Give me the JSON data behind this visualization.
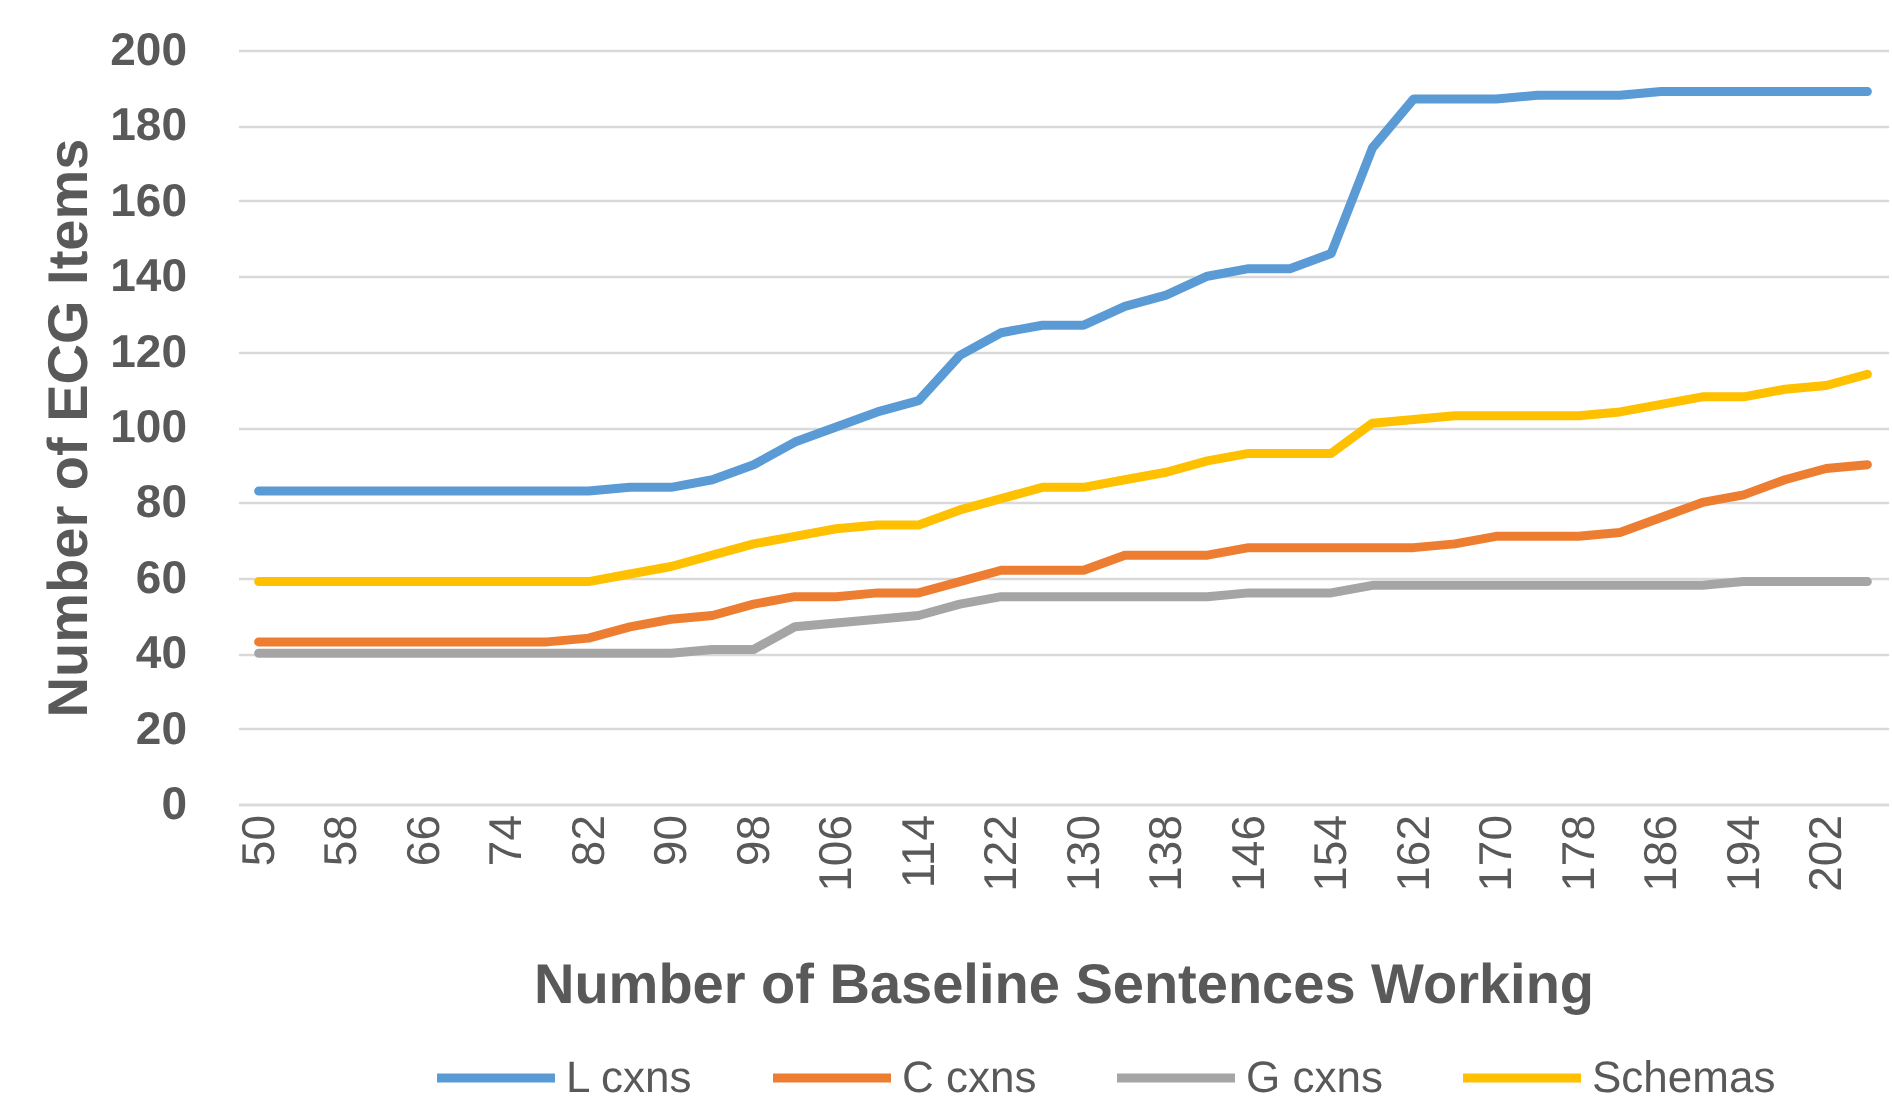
{
  "chart_data": {
    "type": "line",
    "xlabel": "Number of Baseline Sentences Working",
    "ylabel": "Number of ECG Items",
    "categories": [
      "50",
      null,
      "58",
      null,
      "66",
      null,
      "74",
      null,
      "82",
      null,
      "90",
      null,
      "98",
      null,
      "106",
      null,
      "114",
      null,
      "122",
      null,
      "130",
      null,
      "138",
      null,
      "146",
      null,
      "154",
      null,
      "162",
      null,
      "170",
      null,
      "178",
      null,
      "186",
      null,
      "194",
      null,
      "202",
      null
    ],
    "ylim": [
      0,
      200
    ],
    "yticks": [
      0,
      20,
      40,
      60,
      80,
      100,
      120,
      140,
      160,
      180,
      200
    ],
    "grid": "y",
    "legend": "bottom",
    "line_style": "solid",
    "series": [
      {
        "name": "L cxns",
        "color": "#5b9bd5",
        "values": [
          83,
          83,
          83,
          83,
          83,
          83,
          83,
          83,
          83,
          84,
          84,
          86,
          90,
          96,
          100,
          104,
          107,
          119,
          125,
          127,
          127,
          132,
          135,
          140,
          142,
          142,
          146,
          174,
          187,
          187,
          187,
          188,
          188,
          188,
          189,
          189,
          189,
          189,
          189,
          189
        ]
      },
      {
        "name": "C cxns",
        "color": "#ed7d31",
        "values": [
          43,
          43,
          43,
          43,
          43,
          43,
          43,
          43,
          44,
          47,
          49,
          50,
          53,
          55,
          55,
          56,
          56,
          59,
          62,
          62,
          62,
          66,
          66,
          66,
          68,
          68,
          68,
          68,
          68,
          69,
          71,
          71,
          71,
          72,
          76,
          80,
          82,
          86,
          89,
          90
        ]
      },
      {
        "name": "G cxns",
        "color": "#a5a5a5",
        "values": [
          40,
          40,
          40,
          40,
          40,
          40,
          40,
          40,
          40,
          40,
          40,
          41,
          41,
          47,
          48,
          49,
          50,
          53,
          55,
          55,
          55,
          55,
          55,
          55,
          56,
          56,
          56,
          58,
          58,
          58,
          58,
          58,
          58,
          58,
          58,
          58,
          59,
          59,
          59,
          59
        ]
      },
      {
        "name": "Schemas",
        "color": "#ffc000",
        "values": [
          59,
          59,
          59,
          59,
          59,
          59,
          59,
          59,
          59,
          61,
          63,
          66,
          69,
          71,
          73,
          74,
          74,
          78,
          81,
          84,
          84,
          86,
          88,
          91,
          93,
          93,
          93,
          101,
          102,
          103,
          103,
          103,
          103,
          104,
          106,
          108,
          108,
          110,
          111,
          114
        ]
      }
    ]
  }
}
